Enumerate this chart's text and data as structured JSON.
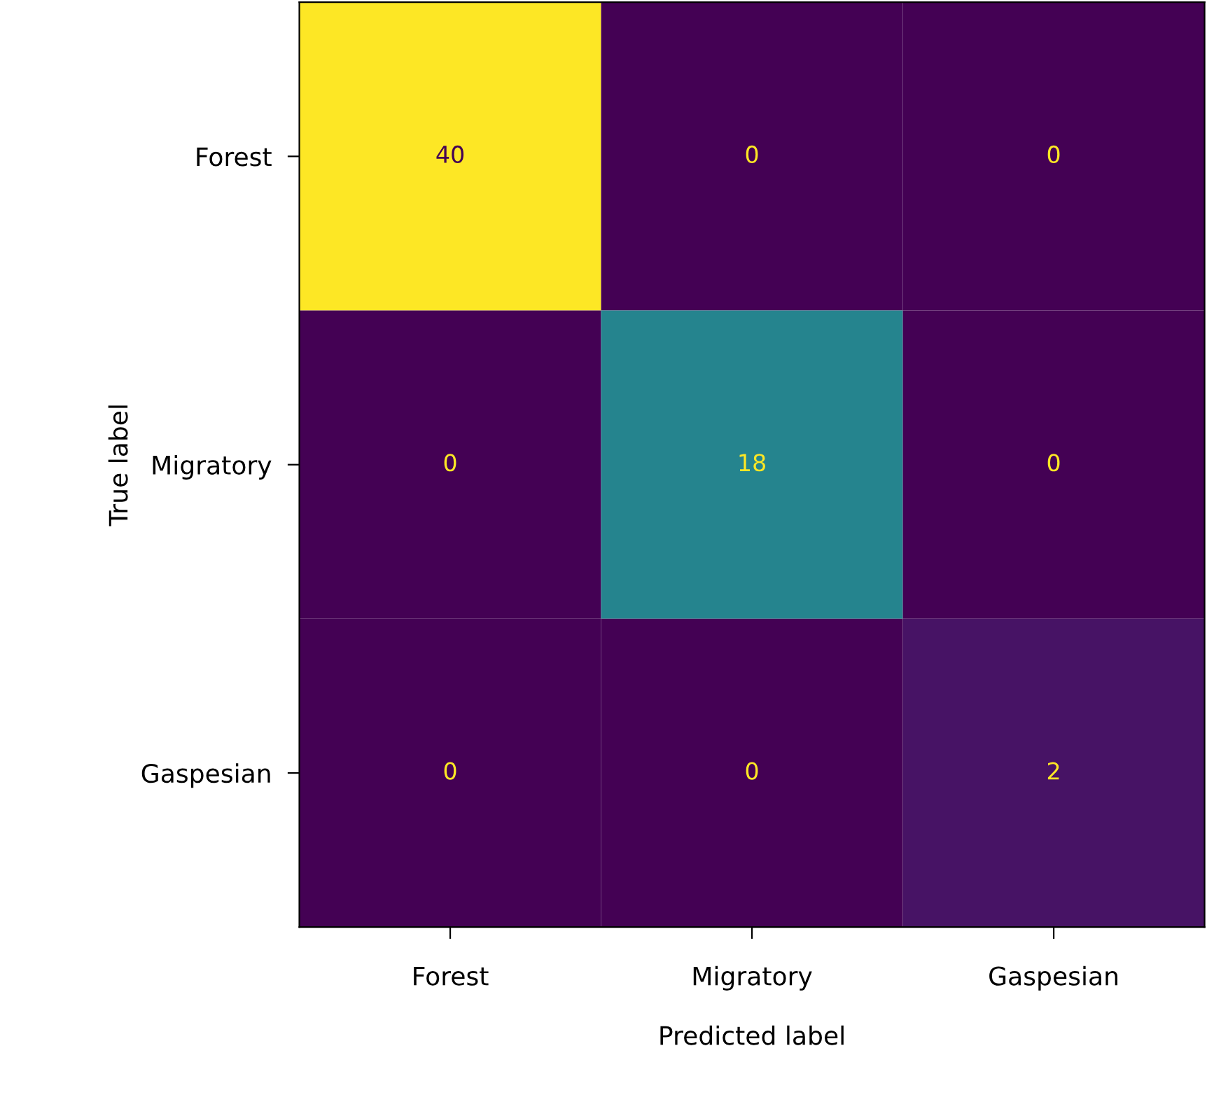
{
  "chart_data": {
    "type": "heatmap",
    "xlabel": "Predicted label",
    "ylabel": "True label",
    "categories": [
      "Forest",
      "Migratory",
      "Gaspesian"
    ],
    "y_categories": [
      "Forest",
      "Migratory",
      "Gaspesian"
    ],
    "cells": [
      [
        40,
        0,
        0
      ],
      [
        0,
        18,
        0
      ],
      [
        0,
        0,
        2
      ]
    ],
    "data_labels": true,
    "grid": false
  }
}
